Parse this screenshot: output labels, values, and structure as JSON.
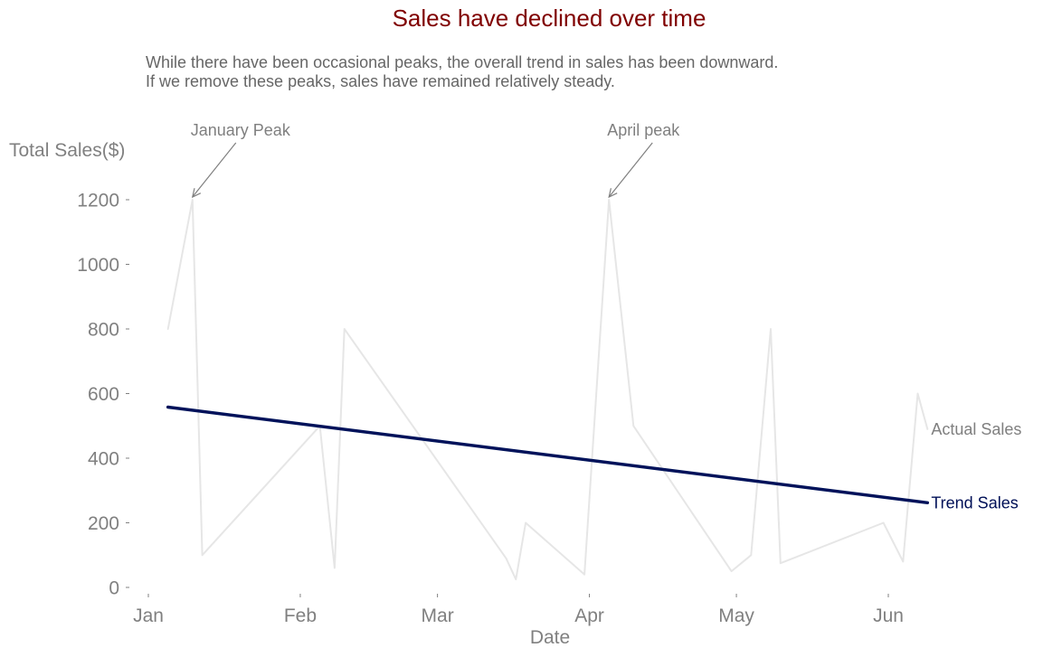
{
  "colors": {
    "title": "#800000",
    "subtitle": "#666666",
    "axis": "#808080",
    "actual_line": "#e6e6e6",
    "trend_line": "#00125a",
    "annotation": "#7f7f7f"
  },
  "chart_data": {
    "type": "line",
    "title": "Sales have declined over time",
    "subtitle_lines": [
      "While there have been occasional peaks, the overall trend in sales has been downward.",
      "If we remove these peaks, sales have remained relatively steady."
    ],
    "xlabel": "Date",
    "ylabel": "Total Sales($)",
    "ylim": [
      0,
      1200
    ],
    "yticks": [
      0,
      200,
      400,
      600,
      800,
      1000,
      1200
    ],
    "ytick_labels": [
      "0",
      "200",
      "400",
      "600",
      "800",
      "1000",
      "1200"
    ],
    "xlim": [
      "2023-01-01",
      "2023-06-30"
    ],
    "xticks": [
      "2023-01-01",
      "2023-02-01",
      "2023-03-01",
      "2023-04-01",
      "2023-05-01",
      "2023-06-01"
    ],
    "xtick_labels": [
      "Jan",
      "Feb",
      "Mar",
      "Apr",
      "May",
      "Jun"
    ],
    "grid": false,
    "series": [
      {
        "name": "Actual Sales",
        "color": "#e6e6e6",
        "x": [
          "2023-01-05",
          "2023-01-10",
          "2023-01-12",
          "2023-02-05",
          "2023-02-08",
          "2023-02-10",
          "2023-03-15",
          "2023-03-17",
          "2023-03-19",
          "2023-03-31",
          "2023-04-05",
          "2023-04-10",
          "2023-04-30",
          "2023-05-04",
          "2023-05-08",
          "2023-05-10",
          "2023-05-31",
          "2023-06-04",
          "2023-06-07",
          "2023-06-09"
        ],
        "y": [
          800,
          1200,
          100,
          500,
          60,
          800,
          90,
          25,
          200,
          40,
          1200,
          500,
          50,
          100,
          800,
          75,
          200,
          80,
          600,
          490
        ]
      },
      {
        "name": "Trend Sales",
        "color": "#00125a",
        "x": [
          "2023-01-05",
          "2023-06-09"
        ],
        "y": [
          558,
          262
        ]
      }
    ],
    "annotations": [
      {
        "text": "January Peak",
        "x": "2023-01-10",
        "y": 1200
      },
      {
        "text": "April peak",
        "x": "2023-04-05",
        "y": 1200
      }
    ]
  }
}
